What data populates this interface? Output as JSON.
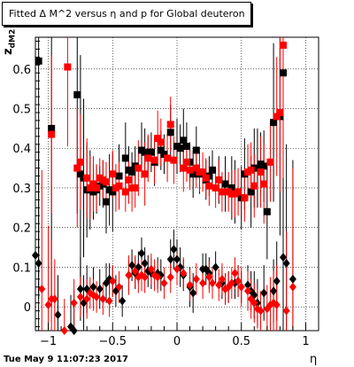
{
  "chart_data": {
    "type": "scatter",
    "title": "Fitted Δ M^2 versus η and p for Global deuteron",
    "xlabel": "η",
    "ylabel": "z_dM2",
    "xlim": [
      -1.1,
      1.1
    ],
    "ylim": [
      -0.06,
      0.68
    ],
    "grid": true,
    "x_ticks": [
      "−1",
      "−0.5",
      "0",
      "0.5",
      "1"
    ],
    "y_ticks": [
      "0",
      "0.1",
      "0.2",
      "0.3",
      "0.4",
      "0.5",
      "0.6"
    ],
    "colors": {
      "black": "#000000",
      "red": "#ff0000"
    },
    "series": [
      {
        "marker": "square",
        "color": "black",
        "points": [
          [
            -1.075,
            0.62,
            0.6
          ],
          [
            -0.975,
            0.45,
            0.45
          ],
          [
            -0.775,
            0.535,
            0.3
          ],
          [
            -0.75,
            0.335,
            0.3
          ],
          [
            -0.725,
            0.325,
            0.2
          ],
          [
            -0.7,
            0.295,
            0.12
          ],
          [
            -0.675,
            0.295,
            0.1
          ],
          [
            -0.65,
            0.29,
            0.07
          ],
          [
            -0.625,
            0.295,
            0.06
          ],
          [
            -0.6,
            0.305,
            0.05
          ],
          [
            -0.575,
            0.31,
            0.06
          ],
          [
            -0.55,
            0.265,
            0.08
          ],
          [
            -0.525,
            0.295,
            0.09
          ],
          [
            -0.5,
            0.29,
            0.1
          ],
          [
            -0.45,
            0.33,
            0.08
          ],
          [
            -0.4,
            0.375,
            0.09
          ],
          [
            -0.375,
            0.345,
            0.06
          ],
          [
            -0.35,
            0.34,
            0.05
          ],
          [
            -0.325,
            0.355,
            0.05
          ],
          [
            -0.275,
            0.395,
            0.07
          ],
          [
            -0.25,
            0.39,
            0.06
          ],
          [
            -0.225,
            0.38,
            0.05
          ],
          [
            -0.2,
            0.39,
            0.05
          ],
          [
            -0.175,
            0.365,
            0.06
          ],
          [
            -0.125,
            0.395,
            0.05
          ],
          [
            -0.1,
            0.385,
            0.05
          ],
          [
            -0.05,
            0.44,
            0.07
          ],
          [
            0.0,
            0.405,
            0.07
          ],
          [
            0.025,
            0.4,
            0.06
          ],
          [
            0.05,
            0.42,
            0.08
          ],
          [
            0.075,
            0.405,
            0.06
          ],
          [
            0.1,
            0.365,
            0.05
          ],
          [
            0.125,
            0.335,
            0.06
          ],
          [
            0.15,
            0.395,
            0.06
          ],
          [
            0.175,
            0.335,
            0.05
          ],
          [
            0.225,
            0.32,
            0.05
          ],
          [
            0.25,
            0.33,
            0.05
          ],
          [
            0.275,
            0.345,
            0.05
          ],
          [
            0.325,
            0.32,
            0.06
          ],
          [
            0.375,
            0.31,
            0.07
          ],
          [
            0.425,
            0.3,
            0.08
          ],
          [
            0.45,
            0.29,
            0.08
          ],
          [
            0.5,
            0.275,
            0.08
          ],
          [
            0.525,
            0.335,
            0.09
          ],
          [
            0.575,
            0.29,
            0.09
          ],
          [
            0.6,
            0.35,
            0.1
          ],
          [
            0.625,
            0.35,
            0.1
          ],
          [
            0.65,
            0.36,
            0.08
          ],
          [
            0.675,
            0.355,
            0.09
          ],
          [
            0.7,
            0.24,
            0.12
          ],
          [
            0.75,
            0.465,
            0.2
          ],
          [
            0.8,
            0.48,
            0.3
          ],
          [
            0.825,
            0.59,
            0.4
          ]
        ]
      },
      {
        "marker": "square",
        "color": "red",
        "points": [
          [
            -0.975,
            0.435,
            0.2
          ],
          [
            -0.85,
            0.605,
            0.2
          ],
          [
            -0.775,
            0.35,
            0.15
          ],
          [
            -0.75,
            0.365,
            0.12
          ],
          [
            -0.7,
            0.325,
            0.1
          ],
          [
            -0.675,
            0.3,
            0.08
          ],
          [
            -0.65,
            0.31,
            0.07
          ],
          [
            -0.625,
            0.3,
            0.06
          ],
          [
            -0.6,
            0.325,
            0.05
          ],
          [
            -0.575,
            0.32,
            0.05
          ],
          [
            -0.55,
            0.315,
            0.05
          ],
          [
            -0.5,
            0.335,
            0.06
          ],
          [
            -0.475,
            0.3,
            0.06
          ],
          [
            -0.45,
            0.305,
            0.06
          ],
          [
            -0.4,
            0.29,
            0.05
          ],
          [
            -0.375,
            0.32,
            0.06
          ],
          [
            -0.35,
            0.3,
            0.06
          ],
          [
            -0.325,
            0.3,
            0.05
          ],
          [
            -0.3,
            0.35,
            0.07
          ],
          [
            -0.25,
            0.335,
            0.08
          ],
          [
            -0.225,
            0.375,
            0.06
          ],
          [
            -0.175,
            0.37,
            0.06
          ],
          [
            -0.15,
            0.425,
            0.07
          ],
          [
            -0.125,
            0.415,
            0.06
          ],
          [
            -0.075,
            0.375,
            0.06
          ],
          [
            -0.05,
            0.46,
            0.07
          ],
          [
            -0.025,
            0.37,
            0.06
          ],
          [
            0.05,
            0.35,
            0.06
          ],
          [
            0.075,
            0.365,
            0.05
          ],
          [
            0.1,
            0.345,
            0.05
          ],
          [
            0.15,
            0.35,
            0.05
          ],
          [
            0.175,
            0.34,
            0.05
          ],
          [
            0.2,
            0.34,
            0.05
          ],
          [
            0.225,
            0.325,
            0.05
          ],
          [
            0.25,
            0.305,
            0.05
          ],
          [
            0.3,
            0.3,
            0.05
          ],
          [
            0.325,
            0.32,
            0.05
          ],
          [
            0.35,
            0.29,
            0.05
          ],
          [
            0.4,
            0.29,
            0.05
          ],
          [
            0.425,
            0.285,
            0.06
          ],
          [
            0.45,
            0.285,
            0.06
          ],
          [
            0.475,
            0.29,
            0.06
          ],
          [
            0.525,
            0.275,
            0.06
          ],
          [
            0.55,
            0.34,
            0.07
          ],
          [
            0.575,
            0.345,
            0.07
          ],
          [
            0.6,
            0.305,
            0.08
          ],
          [
            0.65,
            0.34,
            0.09
          ],
          [
            0.675,
            0.31,
            0.1
          ],
          [
            0.725,
            0.365,
            0.1
          ],
          [
            0.775,
            0.48,
            0.15
          ],
          [
            0.8,
            0.49,
            0.2
          ],
          [
            0.825,
            0.66,
            0.4
          ]
        ]
      },
      {
        "marker": "diamond",
        "color": "black",
        "points": [
          [
            -1.1,
            0.13,
            0.25
          ],
          [
            -1.075,
            0.11,
            0.3
          ],
          [
            -0.925,
            -0.02,
            0.1
          ],
          [
            -0.825,
            -0.05,
            0.08
          ],
          [
            -0.8,
            -0.06,
            0.1
          ],
          [
            -0.75,
            0.045,
            0.08
          ],
          [
            -0.725,
            0.01,
            0.07
          ],
          [
            -0.7,
            0.045,
            0.06
          ],
          [
            -0.65,
            0.05,
            0.05
          ],
          [
            -0.6,
            0.045,
            0.05
          ],
          [
            -0.55,
            0.06,
            0.05
          ],
          [
            -0.525,
            0.07,
            0.04
          ],
          [
            -0.5,
            0.065,
            0.04
          ],
          [
            -0.475,
            0.04,
            0.04
          ],
          [
            -0.425,
            0.015,
            0.04
          ],
          [
            -0.375,
            0.08,
            0.04
          ],
          [
            -0.35,
            0.105,
            0.04
          ],
          [
            -0.325,
            0.085,
            0.04
          ],
          [
            -0.3,
            0.1,
            0.04
          ],
          [
            -0.275,
            0.135,
            0.04
          ],
          [
            -0.25,
            0.11,
            0.04
          ],
          [
            -0.225,
            0.09,
            0.04
          ],
          [
            -0.2,
            0.085,
            0.04
          ],
          [
            -0.15,
            0.085,
            0.04
          ],
          [
            -0.125,
            0.08,
            0.04
          ],
          [
            -0.05,
            0.12,
            0.05
          ],
          [
            -0.025,
            0.145,
            0.05
          ],
          [
            0.0,
            0.12,
            0.05
          ],
          [
            0.025,
            0.1,
            0.05
          ],
          [
            0.05,
            0.08,
            0.04
          ],
          [
            0.1,
            0.05,
            0.05
          ],
          [
            0.125,
            0.035,
            0.05
          ],
          [
            0.2,
            0.095,
            0.04
          ],
          [
            0.225,
            0.095,
            0.04
          ],
          [
            0.25,
            0.085,
            0.04
          ],
          [
            0.3,
            0.1,
            0.04
          ],
          [
            0.35,
            0.06,
            0.04
          ],
          [
            0.375,
            0.045,
            0.04
          ],
          [
            0.4,
            0.05,
            0.04
          ],
          [
            0.45,
            0.06,
            0.04
          ],
          [
            0.475,
            0.065,
            0.04
          ],
          [
            0.5,
            0.05,
            0.04
          ],
          [
            0.55,
            0.055,
            0.05
          ],
          [
            0.575,
            0.04,
            0.05
          ],
          [
            0.6,
            0.03,
            0.06
          ],
          [
            0.625,
            0.01,
            0.06
          ],
          [
            0.675,
            0.035,
            0.07
          ],
          [
            0.75,
            0.04,
            0.08
          ],
          [
            0.775,
            0.065,
            0.1
          ],
          [
            0.825,
            0.125,
            0.2
          ],
          [
            0.85,
            0.11,
            0.3
          ],
          [
            0.9,
            0.07,
            0.3
          ]
        ]
      },
      {
        "marker": "diamond",
        "color": "red",
        "points": [
          [
            -1.05,
            0.045,
            0.3
          ],
          [
            -1.0,
            0.005,
            0.2
          ],
          [
            -0.975,
            0.02,
            0.15
          ],
          [
            -0.95,
            0.02,
            0.1
          ],
          [
            -0.875,
            -0.06,
            0.08
          ],
          [
            -0.8,
            0.01,
            0.06
          ],
          [
            -0.75,
            0.025,
            0.05
          ],
          [
            -0.7,
            0.02,
            0.05
          ],
          [
            -0.675,
            0.035,
            0.04
          ],
          [
            -0.65,
            0.03,
            0.04
          ],
          [
            -0.625,
            0.025,
            0.04
          ],
          [
            -0.575,
            0.02,
            0.04
          ],
          [
            -0.525,
            0.015,
            0.04
          ],
          [
            -0.5,
            0.065,
            0.04
          ],
          [
            -0.45,
            0.05,
            0.04
          ],
          [
            -0.375,
            0.08,
            0.05
          ],
          [
            -0.325,
            0.09,
            0.04
          ],
          [
            -0.3,
            0.075,
            0.04
          ],
          [
            -0.275,
            0.08,
            0.04
          ],
          [
            -0.25,
            0.075,
            0.04
          ],
          [
            -0.2,
            0.095,
            0.04
          ],
          [
            -0.175,
            0.08,
            0.04
          ],
          [
            -0.15,
            0.075,
            0.04
          ],
          [
            -0.1,
            0.06,
            0.04
          ],
          [
            -0.05,
            0.075,
            0.04
          ],
          [
            0.0,
            0.095,
            0.04
          ],
          [
            0.05,
            0.085,
            0.04
          ],
          [
            0.1,
            0.055,
            0.04
          ],
          [
            0.15,
            0.07,
            0.04
          ],
          [
            0.2,
            0.06,
            0.04
          ],
          [
            0.25,
            0.075,
            0.04
          ],
          [
            0.275,
            0.06,
            0.04
          ],
          [
            0.325,
            0.055,
            0.04
          ],
          [
            0.35,
            0.07,
            0.04
          ],
          [
            0.375,
            0.045,
            0.04
          ],
          [
            0.4,
            0.05,
            0.04
          ],
          [
            0.425,
            0.06,
            0.04
          ],
          [
            0.45,
            0.085,
            0.04
          ],
          [
            0.475,
            0.065,
            0.04
          ],
          [
            0.5,
            0.05,
            0.05
          ],
          [
            0.55,
            0.04,
            0.05
          ],
          [
            0.575,
            0.02,
            0.05
          ],
          [
            0.6,
            0.01,
            0.05
          ],
          [
            0.625,
            -0.005,
            0.05
          ],
          [
            0.65,
            -0.01,
            0.05
          ],
          [
            0.7,
            -0.005,
            0.06
          ],
          [
            0.725,
            0.005,
            0.07
          ],
          [
            0.75,
            0.01,
            0.08
          ],
          [
            0.775,
            0.005,
            0.1
          ],
          [
            0.85,
            -0.01,
            0.2
          ],
          [
            0.9,
            0.05,
            0.3
          ]
        ]
      }
    ]
  },
  "footer": {
    "timestamp": "Tue May  9 11:07:23 2017"
  }
}
